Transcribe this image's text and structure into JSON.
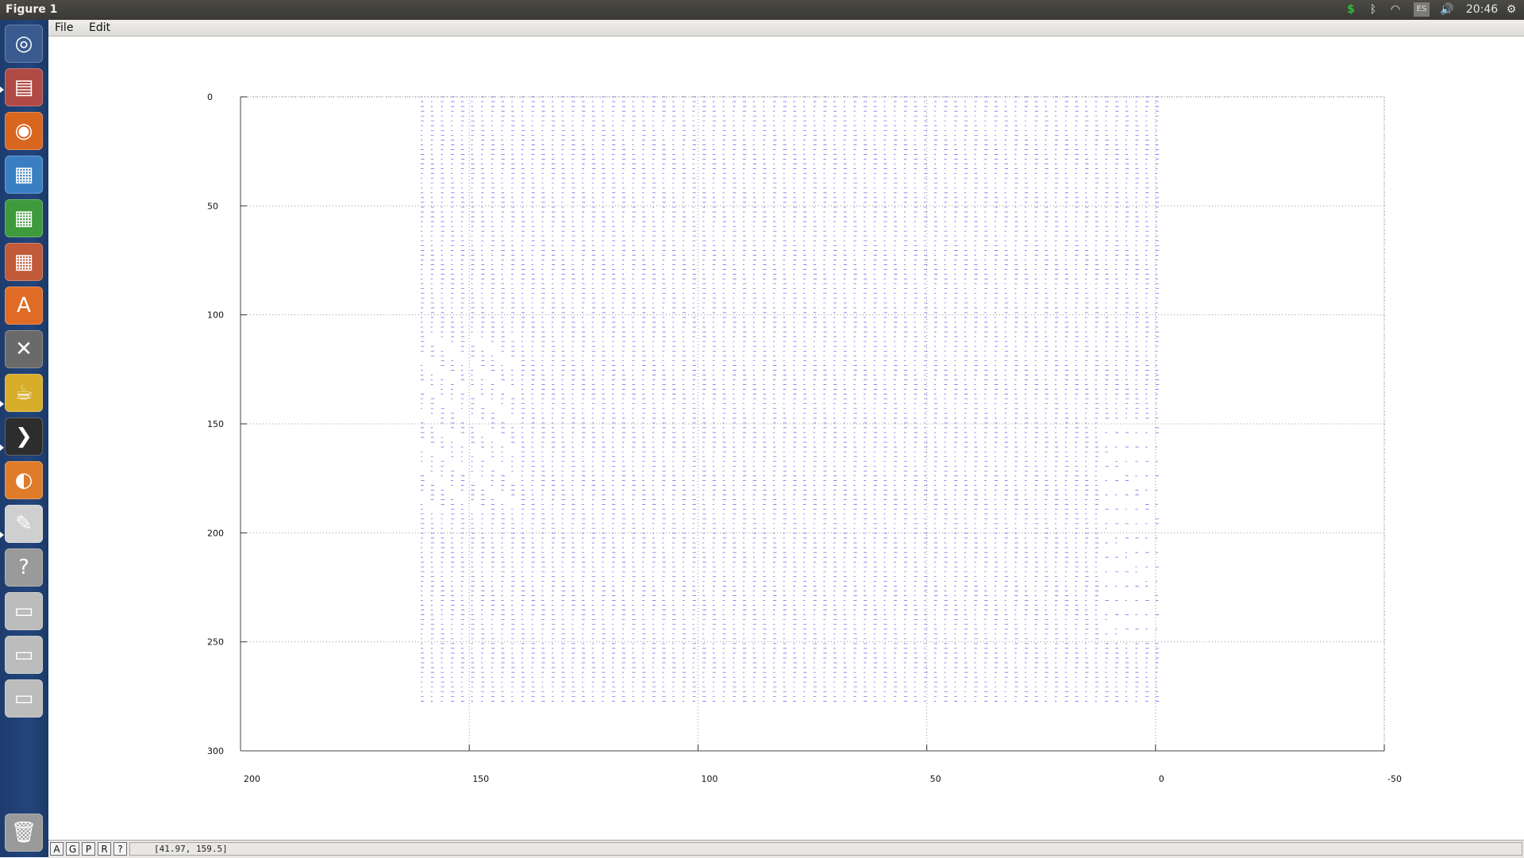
{
  "window": {
    "title": "Figure 1"
  },
  "tray": {
    "clock": "20:46",
    "keyboard_layout": "ES",
    "icons": [
      "dollar-icon",
      "bluetooth-icon",
      "wifi-icon",
      "keyboard-icon",
      "volume-icon",
      "gear-icon"
    ]
  },
  "menu": {
    "file": "File",
    "edit": "Edit"
  },
  "launcher": {
    "items": [
      {
        "name": "ubuntu-dash-icon",
        "glyph": "◎",
        "color": "#3a5b8f"
      },
      {
        "name": "files-icon",
        "glyph": "▤",
        "color": "#b04a44"
      },
      {
        "name": "firefox-icon",
        "glyph": "◉",
        "color": "#d9661f"
      },
      {
        "name": "writer-icon",
        "glyph": "▦",
        "color": "#3a7fc2"
      },
      {
        "name": "calc-icon",
        "glyph": "▦",
        "color": "#3e9a3c"
      },
      {
        "name": "impress-icon",
        "glyph": "▦",
        "color": "#c05a38"
      },
      {
        "name": "software-center-icon",
        "glyph": "A",
        "color": "#e06b25"
      },
      {
        "name": "settings-icon",
        "glyph": "✕",
        "color": "#6a6a6a"
      },
      {
        "name": "teapot-icon",
        "glyph": "☕",
        "color": "#d7ad2a"
      },
      {
        "name": "terminal-icon",
        "glyph": "❯",
        "color": "#2d2d2d"
      },
      {
        "name": "octave-icon",
        "glyph": "◐",
        "color": "#de7c2a"
      },
      {
        "name": "text-editor-icon",
        "glyph": "✎",
        "color": "#cfcfcf"
      },
      {
        "name": "help-icon",
        "glyph": "?",
        "color": "#9a9a9a"
      },
      {
        "name": "drive-icon",
        "glyph": "▭",
        "color": "#bcbcbc"
      },
      {
        "name": "drive-icon",
        "glyph": "▭",
        "color": "#bcbcbc"
      },
      {
        "name": "drive-icon",
        "glyph": "▭",
        "color": "#bcbcbc"
      }
    ],
    "trash": {
      "name": "trash-icon",
      "glyph": "🗑",
      "color": "#9a9a9a"
    }
  },
  "status": {
    "buttons": [
      "A",
      "G",
      "P",
      "R",
      "?"
    ],
    "coordinates": "[41.97, 159.5]"
  },
  "chart_data": {
    "type": "scatter",
    "title": "",
    "xlabel": "",
    "ylabel": "",
    "xlim": [
      200,
      -50
    ],
    "ylim": [
      300,
      0
    ],
    "x_reversed": true,
    "y_reversed": true,
    "xticks": [
      200,
      150,
      100,
      50,
      0,
      -50
    ],
    "yticks": [
      0,
      50,
      100,
      150,
      200,
      250,
      300
    ],
    "grid": true,
    "marker_color": "#2a2ad8",
    "data_extent": {
      "x": [
        161,
        0
      ],
      "y": [
        0,
        278
      ]
    },
    "notes": ""
  }
}
